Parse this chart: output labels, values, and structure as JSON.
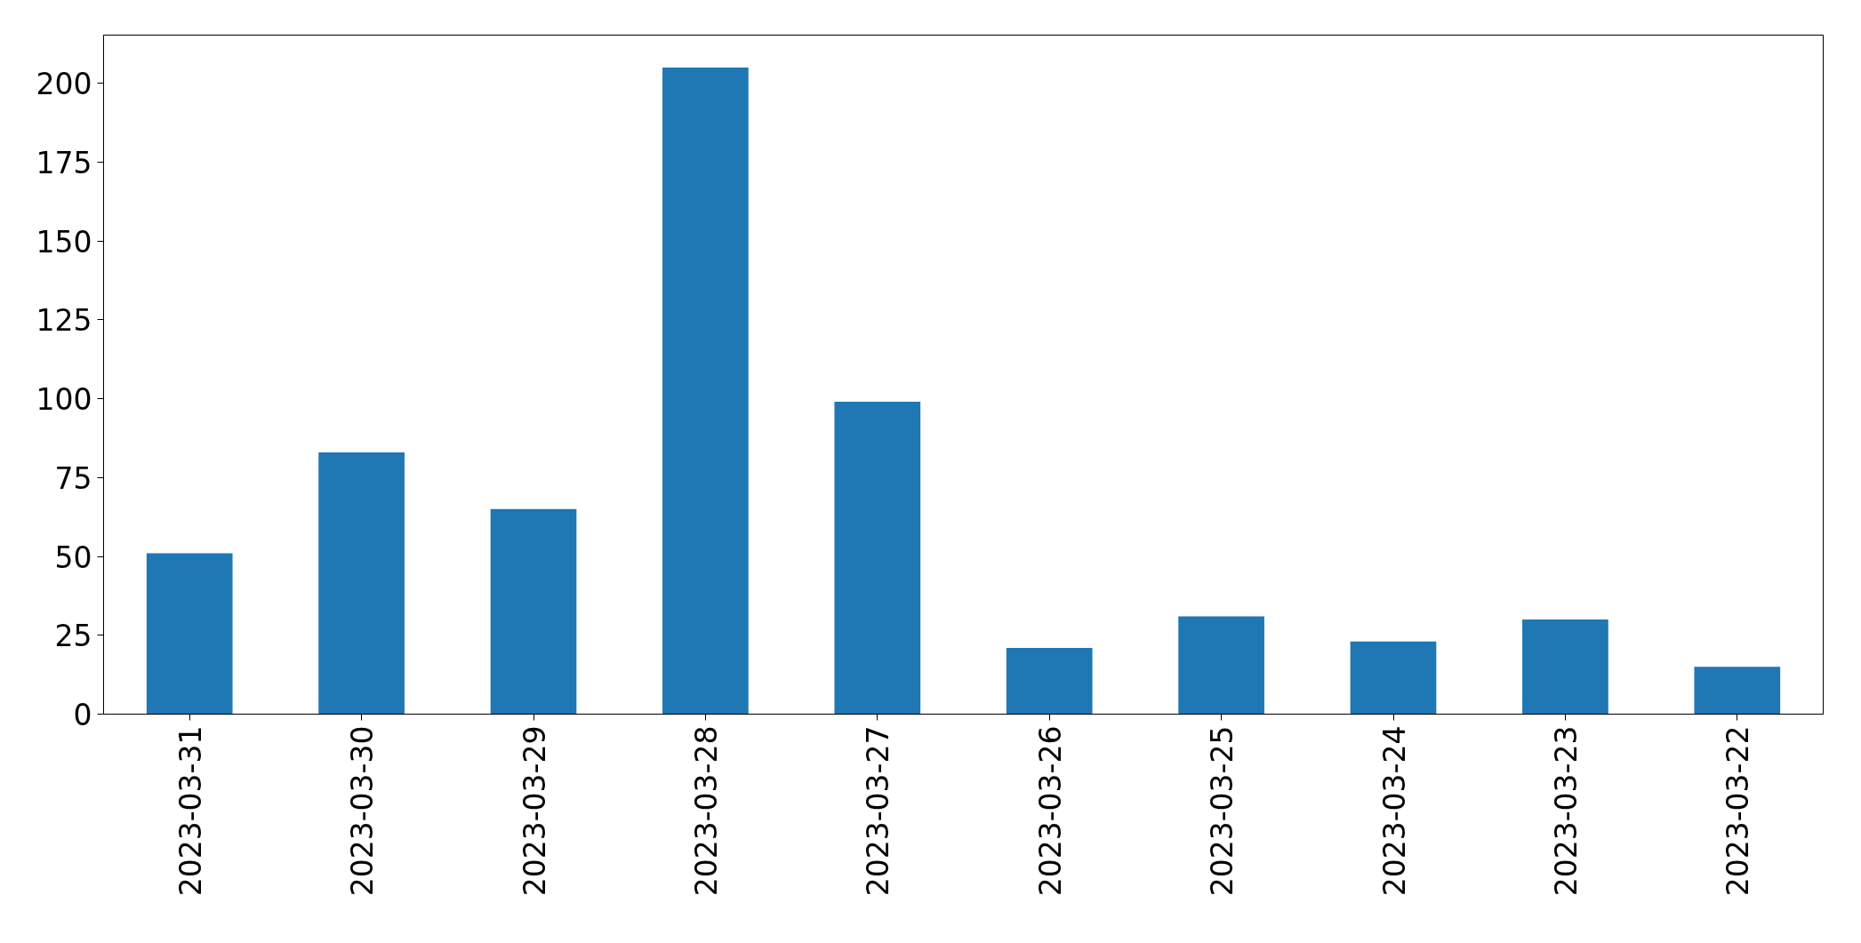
{
  "chart_data": {
    "type": "bar",
    "categories": [
      "2023-03-31",
      "2023-03-30",
      "2023-03-29",
      "2023-03-28",
      "2023-03-27",
      "2023-03-26",
      "2023-03-25",
      "2023-03-24",
      "2023-03-23",
      "2023-03-22"
    ],
    "values": [
      51,
      83,
      65,
      205,
      99,
      21,
      31,
      23,
      30,
      15
    ],
    "color": "#1f77b4",
    "ylim": [
      0,
      215.25
    ],
    "yticks": [
      0,
      25,
      50,
      75,
      100,
      125,
      150,
      175,
      200
    ],
    "grid": false
  }
}
